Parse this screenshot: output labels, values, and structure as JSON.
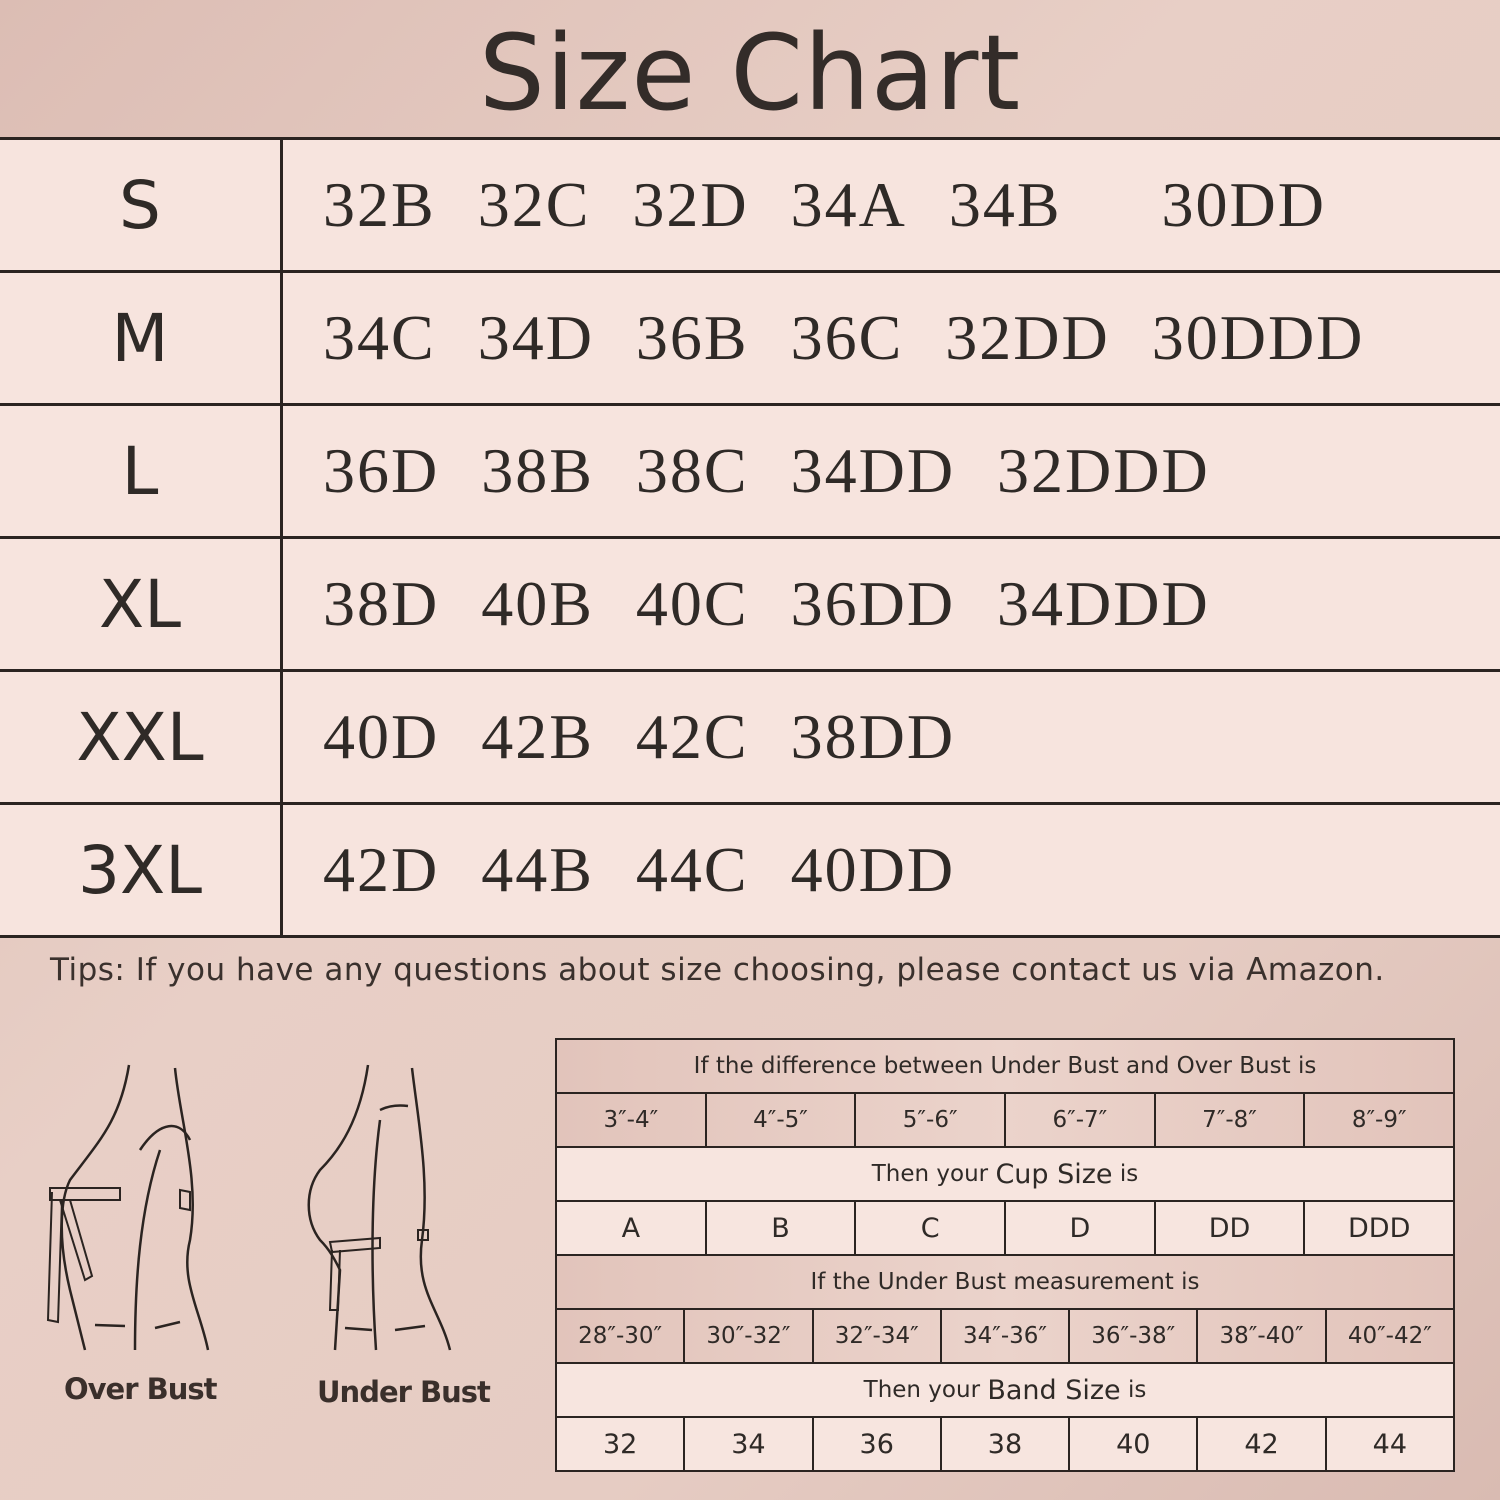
{
  "title": "Size Chart",
  "size_rows": [
    {
      "label": "S",
      "values": [
        "32B",
        "32C",
        "32D",
        "34A",
        "34B",
        "30DD"
      ]
    },
    {
      "label": "M",
      "values": [
        "34C",
        "34D",
        "36B",
        "36C",
        "32DD",
        "30DDD"
      ]
    },
    {
      "label": "L",
      "values": [
        "36D",
        "38B",
        "38C",
        "34DD",
        "32DDD"
      ]
    },
    {
      "label": "XL",
      "values": [
        "38D",
        "40B",
        "40C",
        "36DD",
        "34DDD"
      ]
    },
    {
      "label": "XXL",
      "values": [
        "40D",
        "42B",
        "42C",
        "38DD"
      ]
    },
    {
      "label": "3XL",
      "values": [
        "42D",
        "44B",
        "44C",
        "40DD"
      ]
    }
  ],
  "tips": "Tips:  If you have any questions about size choosing, please contact us via Amazon.",
  "figures": {
    "over_bust": "Over Bust",
    "under_bust": "Under Bust"
  },
  "guide": {
    "difference_header": "If the difference between Under Bust and Over Bust is",
    "differences": [
      "3″-4″",
      "4″-5″",
      "5″-6″",
      "6″-7″",
      "7″-8″",
      "8″-9″"
    ],
    "cup_header_pre": "Then your ",
    "cup_header_em": "Cup Size",
    "cup_header_post": " is",
    "cups": [
      "A",
      "B",
      "C",
      "D",
      "DD",
      "DDD"
    ],
    "under_header": "If the Under Bust measurement is",
    "under_ranges": [
      "28″-30″",
      "30″-32″",
      "32″-34″",
      "34″-36″",
      "36″-38″",
      "38″-40″",
      "40″-42″"
    ],
    "band_header_pre": "Then your ",
    "band_header_em": "Band Size",
    "band_header_post": " is",
    "bands": [
      "32",
      "34",
      "36",
      "38",
      "40",
      "42",
      "44"
    ]
  },
  "colors": {
    "background": "#e6ccc3",
    "row": "#f7e4de",
    "text": "#2f2a27",
    "lines": "#2b2421"
  }
}
